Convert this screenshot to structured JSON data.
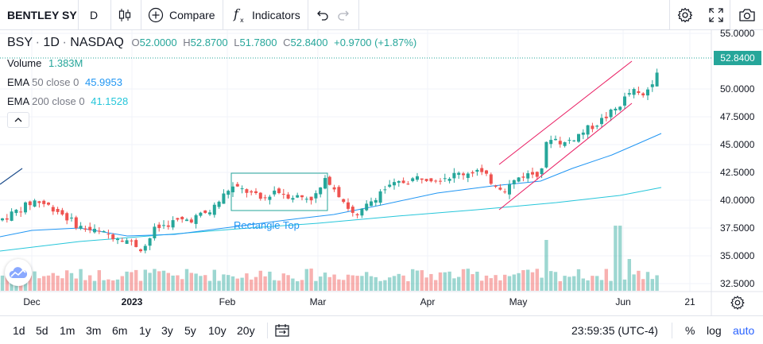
{
  "toolbar": {
    "symbol": "BENTLEY SY",
    "interval": "D",
    "compare_label": "Compare",
    "indicators_label": "Indicators",
    "icons": [
      "candles-icon",
      "plus-circle-icon",
      "fx-icon",
      "undo-icon",
      "redo-icon",
      "gear-icon",
      "fullscreen-icon",
      "camera-icon"
    ]
  },
  "legend": {
    "symbol": "BSY",
    "interval": "1D",
    "exchange": "NASDAQ",
    "open_label": "O",
    "open": "52.0000",
    "high_label": "H",
    "high": "52.8700",
    "low_label": "L",
    "low": "51.7800",
    "close_label": "C",
    "close": "52.8400",
    "change": "+0.9700 (+1.87%)",
    "volume_name": "Volume",
    "volume_value": "1.383M",
    "ema50_name": "EMA",
    "ema50_params": "50 close 0",
    "ema50_value": "45.9953",
    "ema200_name": "EMA",
    "ema200_params": "200 close 0",
    "ema200_value": "41.1528"
  },
  "price_axis": {
    "ticks": [
      "55.0000",
      "52.8400",
      "50.0000",
      "47.5000",
      "45.0000",
      "42.5000",
      "40.0000",
      "37.5000",
      "35.0000",
      "32.5000"
    ],
    "last_price": "52.8400"
  },
  "time_axis": {
    "ticks": [
      "Dec",
      "2023",
      "Feb",
      "Mar",
      "Apr",
      "May",
      "Jun",
      "21"
    ]
  },
  "drawings": {
    "rectangle_label": "Rectangle Top"
  },
  "bottom_bar": {
    "ranges": [
      "1d",
      "5d",
      "1m",
      "3m",
      "6m",
      "1y",
      "3y",
      "5y",
      "10y",
      "20y"
    ],
    "clock": "23:59:35 (UTC-4)",
    "percent_label": "%",
    "log_label": "log",
    "auto_label": "auto"
  },
  "colors": {
    "up": "#26a69a",
    "down": "#ef5350",
    "ema50": "#2196f3",
    "ema200": "#26c6da",
    "channel": "#e91e63",
    "rectangle": "#26a69a",
    "auto_active": "#2962ff"
  },
  "chart_data": {
    "type": "candlestick",
    "price_range": [
      31.7,
      56.0
    ],
    "series": [
      {
        "name": "EMA 50 close 0",
        "last": 45.9953
      },
      {
        "name": "EMA 200 close 0",
        "last": 41.1528
      }
    ],
    "last_close": 52.84
  }
}
